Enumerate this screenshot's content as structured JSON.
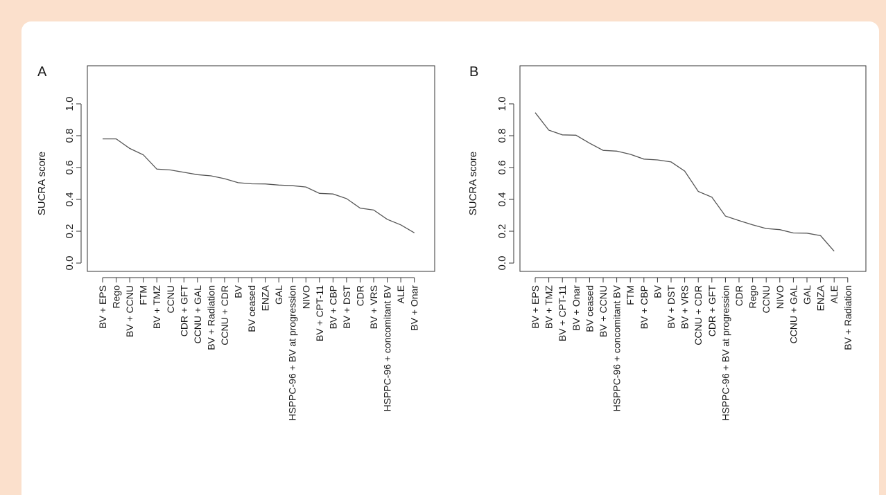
{
  "chart_data": [
    {
      "type": "line",
      "panel_label": "A",
      "ylabel": "SUCRA score",
      "ylim": [
        0.0,
        1.0
      ],
      "yticks": [
        "0.0",
        "0.2",
        "0.4",
        "0.6",
        "0.8",
        "1.0"
      ],
      "categories": [
        "BV + EPS",
        "Rego",
        "BV + CCNU",
        "FTM",
        "BV + TMZ",
        "CCNU",
        "CDR + GFT",
        "CCNU + GAL",
        "BV + Radiation",
        "CCNU + CDR",
        "BV",
        "BV ceased",
        "ENZA",
        "GAL",
        "HSPPC-96 + BV at progression",
        "NIVO",
        "BV + CPT-11",
        "BV + CBP",
        "BV + DST",
        "CDR",
        "BV + VRS",
        "HSPPC-96 + concomitant BV",
        "ALE",
        "BV + Onar"
      ],
      "values": [
        0.78,
        0.78,
        0.72,
        0.68,
        0.59,
        0.585,
        0.57,
        0.555,
        0.548,
        0.53,
        0.505,
        0.498,
        0.497,
        0.49,
        0.486,
        0.478,
        0.438,
        0.434,
        0.405,
        0.345,
        0.333,
        0.275,
        0.24,
        0.19
      ],
      "grid": false
    },
    {
      "type": "line",
      "panel_label": "B",
      "ylabel": "SUCRA score",
      "ylim": [
        0.0,
        1.0
      ],
      "yticks": [
        "0.0",
        "0.2",
        "0.4",
        "0.6",
        "0.8",
        "1.0"
      ],
      "categories": [
        "BV + EPS",
        "BV + TMZ",
        "BV + CPT-11",
        "BV + Onar",
        "BV ceased",
        "BV + CCNU",
        "HSPPC-96 + concomitant BV",
        "FTM",
        "BV + CBP",
        "BV",
        "BV + DST",
        "BV + VRS",
        "CCNU + CDR",
        "CDR + GFT",
        "HSPPC-96 + BV at progression",
        "CDR",
        "Rego",
        "CCNU",
        "NIVO",
        "CCNU + GAL",
        "GAL",
        "ENZA",
        "ALE",
        "BV + Radiation"
      ],
      "values": [
        0.945,
        0.835,
        0.805,
        0.803,
        0.753,
        0.708,
        0.703,
        0.683,
        0.653,
        0.648,
        0.635,
        0.578,
        0.45,
        0.414,
        0.295,
        0.267,
        0.24,
        0.217,
        0.21,
        0.189,
        0.188,
        0.172,
        0.075,
        null
      ],
      "grid": false
    }
  ]
}
